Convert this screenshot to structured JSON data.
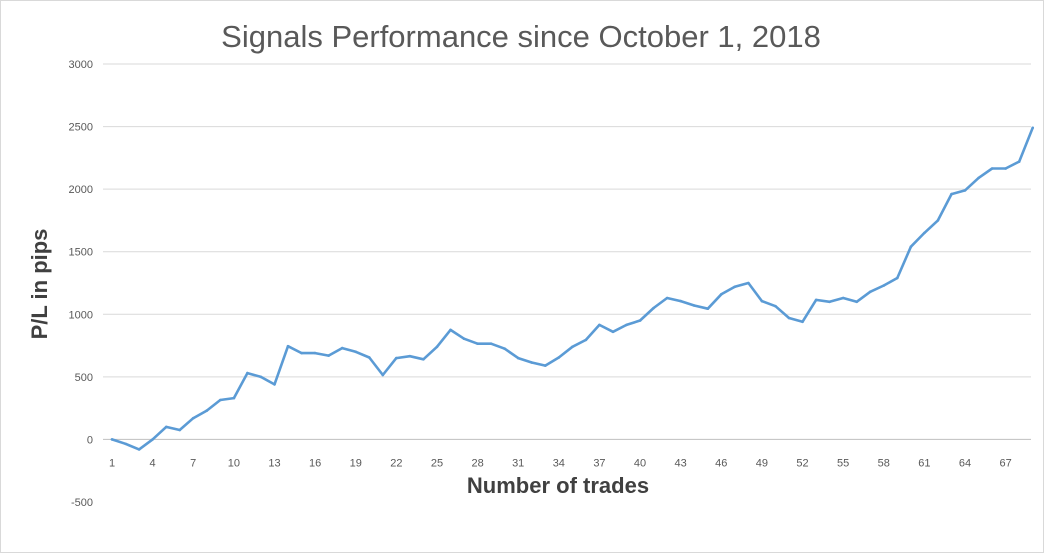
{
  "chart_data": {
    "type": "line",
    "title": "Signals Performance since October 1, 2018",
    "xlabel": "Number of trades",
    "ylabel": "P/L in pips",
    "ylim": [
      -500,
      3000
    ],
    "yticks": [
      -500,
      0,
      500,
      1000,
      1500,
      2000,
      2500,
      3000
    ],
    "xticks": [
      1,
      4,
      7,
      10,
      13,
      16,
      19,
      22,
      25,
      28,
      31,
      34,
      37,
      40,
      43,
      46,
      49,
      52,
      55,
      58,
      61,
      64,
      67
    ],
    "grid": "horizontal",
    "legend": "none",
    "line_color": "#5b9bd5",
    "x": [
      1,
      2,
      3,
      4,
      5,
      6,
      7,
      8,
      9,
      10,
      11,
      12,
      13,
      14,
      15,
      16,
      17,
      18,
      19,
      20,
      21,
      22,
      23,
      24,
      25,
      26,
      27,
      28,
      29,
      30,
      31,
      32,
      33,
      34,
      35,
      36,
      37,
      38,
      39,
      40,
      41,
      42,
      43,
      44,
      45,
      46,
      47,
      48,
      49,
      50,
      51,
      52,
      53,
      54,
      55,
      56,
      57,
      58,
      59,
      60,
      61,
      62,
      63,
      64,
      65,
      66,
      67,
      68,
      69
    ],
    "series": [
      {
        "values": [
          0,
          -35,
          -80,
          0,
          100,
          75,
          170,
          230,
          315,
          330,
          530,
          500,
          440,
          745,
          690,
          690,
          670,
          730,
          700,
          655,
          515,
          650,
          665,
          640,
          740,
          875,
          805,
          765,
          765,
          725,
          650,
          615,
          590,
          655,
          740,
          795,
          915,
          860,
          915,
          950,
          1050,
          1130,
          1105,
          1070,
          1045,
          1160,
          1220,
          1250,
          1105,
          1065,
          970,
          940,
          1115,
          1100,
          1130,
          1100,
          1180,
          1230,
          1290,
          1540,
          1650,
          1750,
          1960,
          1990,
          2090,
          2165,
          2165,
          2220,
          2490
        ]
      }
    ]
  }
}
